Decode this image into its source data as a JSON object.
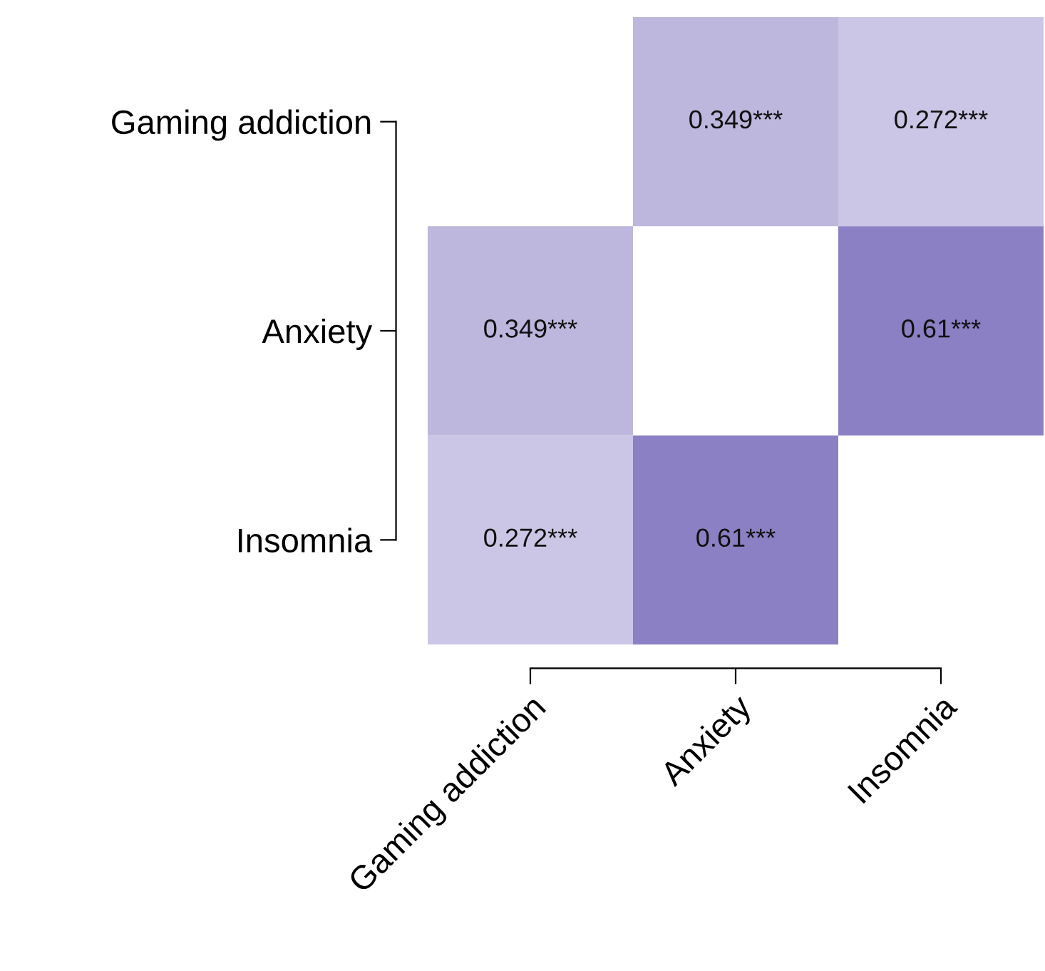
{
  "chart_data": {
    "type": "heatmap",
    "categories": [
      "Gaming addiction",
      "Anxiety",
      "Insomnia"
    ],
    "y_categories": [
      "Gaming addiction",
      "Anxiety",
      "Insomnia"
    ],
    "cells": [
      [
        null,
        0.349,
        0.272
      ],
      [
        0.349,
        null,
        0.61
      ],
      [
        0.272,
        0.61,
        null
      ]
    ],
    "cell_labels": [
      [
        null,
        "0.349***",
        "0.272***"
      ],
      [
        "0.349***",
        null,
        "0.61***"
      ],
      [
        "0.272***",
        "0.61***",
        null
      ]
    ]
  }
}
